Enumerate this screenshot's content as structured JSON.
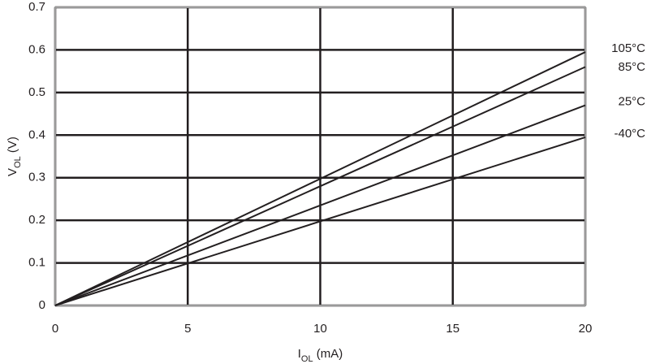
{
  "chart_data": {
    "type": "line",
    "x_label": [
      "I",
      "OL",
      " (mA)"
    ],
    "y_label": [
      "V",
      "OL",
      " (V)"
    ],
    "x": [
      0,
      20
    ],
    "series": [
      {
        "name": "105°C",
        "color": "#231f20",
        "values": [
          0,
          0.595
        ]
      },
      {
        "name": "85°C",
        "color": "#231f20",
        "values": [
          0,
          0.56
        ]
      },
      {
        "name": "25°C",
        "color": "#231f20",
        "values": [
          0,
          0.47
        ]
      },
      {
        "name": "-40°C",
        "color": "#231f20",
        "values": [
          0,
          0.395
        ]
      }
    ],
    "xlim": [
      0,
      20
    ],
    "xticks": [
      0,
      5,
      10,
      15,
      20
    ],
    "ylim": [
      0,
      0.7
    ],
    "yticks": [
      0,
      0.1,
      0.2,
      0.3,
      0.4,
      0.5,
      0.6,
      0.7
    ],
    "grid": true
  }
}
